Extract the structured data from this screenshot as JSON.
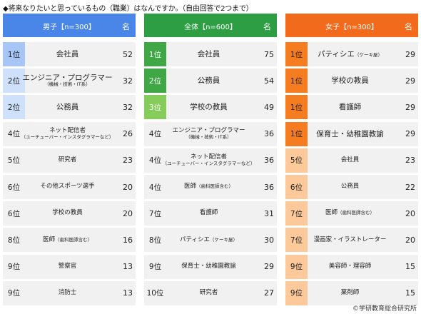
{
  "title": "◆将来なりたいと思っているもの（職業）はなんですか。（自由回答で2つまで）",
  "unit_label": "名",
  "copyright": "©学研教育総合研究所",
  "colors": {
    "male_header": "#4a86e8",
    "all_header": "#2e9e45",
    "female_header": "#f26b1d",
    "male_top": "#a8c6f5",
    "male_mid": "#cfe0fa",
    "all_top": "#3fa845",
    "all_top_text": "#ffffff",
    "all_third": "#86cc5a",
    "all_third_text": "#ffffff",
    "female_top": "#f57c1f",
    "female_mid": "#fbc99a",
    "plain_rank": "#f1f1f1"
  },
  "chart_data": [
    {
      "type": "table",
      "panel": "male",
      "header": "男子【n=300】",
      "rows": [
        {
          "rank": "1位",
          "name": "会社員",
          "sub": "",
          "value": 52,
          "tier": "top"
        },
        {
          "rank": "2位",
          "name": "エンジニア・プログラマー",
          "sub": "（機械・技術・IT系）",
          "value": 32,
          "tier": "mid"
        },
        {
          "rank": "2位",
          "name": "公務員",
          "sub": "",
          "value": 32,
          "tier": "mid"
        },
        {
          "rank": "4位",
          "name": "ネット配信者",
          "sub": "（ユーチューバー・インスタグラマーなど）",
          "value": 26,
          "tier": "plain",
          "small": true
        },
        {
          "rank": "5位",
          "name": "研究者",
          "sub": "",
          "value": 23,
          "tier": "plain",
          "small": true
        },
        {
          "rank": "6位",
          "name": "その他スポーツ選手",
          "sub": "",
          "value": 20,
          "tier": "plain",
          "small": true
        },
        {
          "rank": "6位",
          "name": "学校の教員",
          "sub": "",
          "value": 20,
          "tier": "plain",
          "small": true
        },
        {
          "rank": "8位",
          "name": "医師",
          "sub": "（歯科医師含む）",
          "value": 16,
          "tier": "plain",
          "small": true,
          "inline_sub": true
        },
        {
          "rank": "9位",
          "name": "警察官",
          "sub": "",
          "value": 13,
          "tier": "plain",
          "small": true
        },
        {
          "rank": "9位",
          "name": "消防士",
          "sub": "",
          "value": 13,
          "tier": "plain",
          "small": true
        }
      ]
    },
    {
      "type": "table",
      "panel": "all",
      "header": "全体【n=600】",
      "rows": [
        {
          "rank": "1位",
          "name": "会社員",
          "sub": "",
          "value": 75,
          "tier": "top"
        },
        {
          "rank": "2位",
          "name": "公務員",
          "sub": "",
          "value": 54,
          "tier": "top"
        },
        {
          "rank": "3位",
          "name": "学校の教員",
          "sub": "",
          "value": 49,
          "tier": "third"
        },
        {
          "rank": "4位",
          "name": "エンジニア・プログラマー",
          "sub": "（機械・技術・IT系）",
          "value": 36,
          "tier": "plain",
          "small": true
        },
        {
          "rank": "4位",
          "name": "ネット配信者",
          "sub": "（ユーチューバー・インスタグラマーなど）",
          "value": 36,
          "tier": "plain",
          "small": true
        },
        {
          "rank": "4位",
          "name": "医師",
          "sub": "（歯科医師含む）",
          "value": 36,
          "tier": "plain",
          "small": true,
          "inline_sub": true
        },
        {
          "rank": "7位",
          "name": "看護師",
          "sub": "",
          "value": 31,
          "tier": "plain",
          "small": true
        },
        {
          "rank": "8位",
          "name": "パティシエ",
          "sub": "（ケーキ屋）",
          "value": 30,
          "tier": "plain",
          "small": true,
          "inline_sub": true
        },
        {
          "rank": "9位",
          "name": "保育士・幼稚園教諭",
          "sub": "",
          "value": 29,
          "tier": "plain",
          "small": true
        },
        {
          "rank": "10位",
          "name": "研究者",
          "sub": "",
          "value": 27,
          "tier": "plain",
          "small": true
        }
      ]
    },
    {
      "type": "table",
      "panel": "female",
      "header": "女子【n=300】",
      "rows": [
        {
          "rank": "1位",
          "name": "パティシエ",
          "sub": "（ケーキ屋）",
          "value": 29,
          "tier": "top",
          "inline_sub": true
        },
        {
          "rank": "1位",
          "name": "学校の教員",
          "sub": "",
          "value": 29,
          "tier": "top"
        },
        {
          "rank": "1位",
          "name": "看護師",
          "sub": "",
          "value": 29,
          "tier": "top"
        },
        {
          "rank": "1位",
          "name": "保育士・幼稚園教諭",
          "sub": "",
          "value": 29,
          "tier": "top"
        },
        {
          "rank": "5位",
          "name": "会社員",
          "sub": "",
          "value": 23,
          "tier": "mid",
          "small": true
        },
        {
          "rank": "6位",
          "name": "公務員",
          "sub": "",
          "value": 22,
          "tier": "mid",
          "small": true
        },
        {
          "rank": "7位",
          "name": "医師",
          "sub": "（歯科医師含む）",
          "value": 20,
          "tier": "mid",
          "small": true,
          "inline_sub": true
        },
        {
          "rank": "7位",
          "name": "漫画家・イラストレーター",
          "sub": "",
          "value": 20,
          "tier": "mid",
          "small": true
        },
        {
          "rank": "9位",
          "name": "美容師・理容師",
          "sub": "",
          "value": 15,
          "tier": "mid",
          "small": true
        },
        {
          "rank": "9位",
          "name": "薬剤師",
          "sub": "",
          "value": 15,
          "tier": "mid",
          "small": true
        }
      ]
    }
  ]
}
